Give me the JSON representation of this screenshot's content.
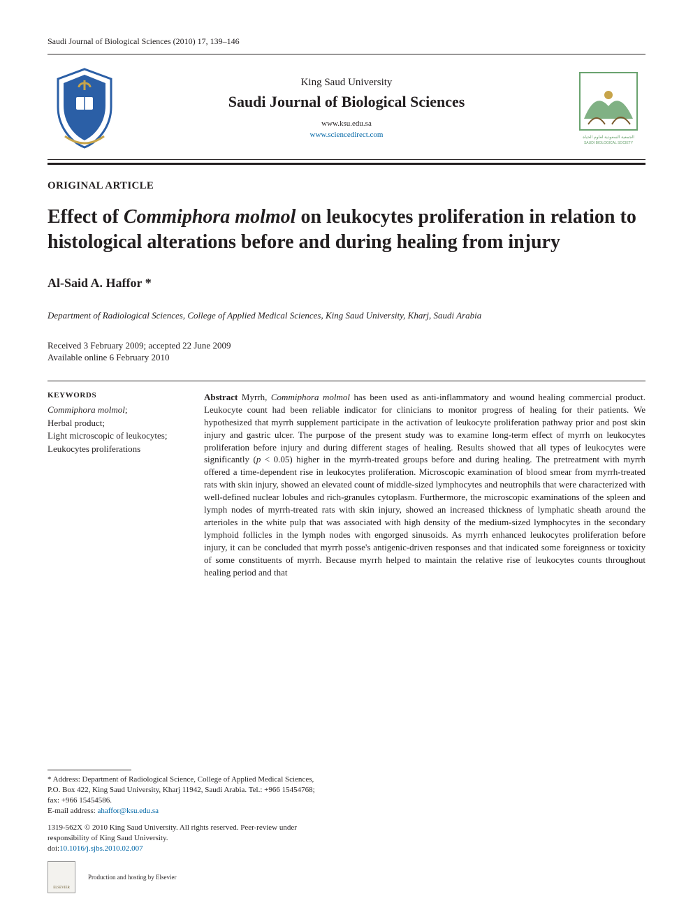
{
  "citation": "Saudi Journal of Biological Sciences (2010) 17, 139–146",
  "header": {
    "publisher": "King Saud University",
    "journal": "Saudi Journal of Biological Sciences",
    "url1": "www.ksu.edu.sa",
    "url2": "www.sciencedirect.com",
    "logo_left_label": "King Saud University crest",
    "logo_right_label": "Saudi Biological Society",
    "logo_right_caption_ar": "الجمعية السعودية لعلوم الحياة",
    "logo_right_caption_en": "SAUDI BIOLOGICAL SOCIETY"
  },
  "article_type": "ORIGINAL ARTICLE",
  "title_pre": "Effect of ",
  "title_em": "Commiphora molmol",
  "title_post": " on leukocytes proliferation in relation to histological alterations before and during healing from injury",
  "author_name": "Al-Said A. Haffor ",
  "author_mark": "*",
  "affiliation": "Department of Radiological Sciences, College of Applied Medical Sciences, King Saud University, Kharj, Saudi Arabia",
  "dates_line1": "Received 3 February 2009; accepted 22 June 2009",
  "dates_line2": "Available online 6 February 2010",
  "keywords_head": "KEYWORDS",
  "keywords_em": "Commiphora molmol",
  "keywords_rest": ";Herbal product;Light microscopic of leukocytes;Leukocytes proliferations",
  "abstract_label": "Abstract",
  "abstract_pre": "   Myrrh, ",
  "abstract_em": "Commiphora molmol",
  "abstract_body": " has been used as anti-inflammatory and wound healing commercial product. Leukocyte count had been reliable indicator for clinicians to monitor progress of healing for their patients. We hypothesized that myrrh supplement participate in the activation of leukocyte proliferation pathway prior and post skin injury and gastric ulcer. The purpose of the present study was to examine long-term effect of myrrh on leukocytes proliferation before injury and during different stages of healing. Results showed that all types of leukocytes were significantly (p < 0.05) higher in the myrrh-treated groups before and during healing. The pretreatment with myrrh offered a time-dependent rise in leukocytes proliferation. Microscopic examination of blood smear from myrrh-treated rats with skin injury, showed an elevated count of middle-sized lymphocytes and neutrophils that were characterized with well-defined nuclear lobules and rich-granules cytoplasm. Furthermore, the microscopic examinations of the spleen and lymph nodes of myrrh-treated rats with skin injury, showed an increased thickness of lymphatic sheath around the arterioles in the white pulp that was associated with high density of the medium-sized lymphocytes in the secondary lymphoid follicles in the lymph nodes with engorged sinusoids. As myrrh enhanced leukocytes proliferation before injury, it can be concluded that myrrh posse's antigenic-driven responses and that indicated some foreignness or toxicity of some constituents of myrrh. Because myrrh helped to maintain the relative rise of leukocytes counts throughout healing period and that",
  "footnotes": {
    "corr_star": "*",
    "corr_text": " Address: Department of Radiological Science, College of Applied Medical Sciences, P.O. Box 422, King Saud University, Kharj 11942, Saudi Arabia. Tel.: +966 15454768; fax: +966 15454586.",
    "email_label": "E-mail address: ",
    "email": "ahaffor@ksu.edu.sa",
    "copyright": "1319-562X © 2010 King Saud University. All rights reserved. Peer-review under responsibility of King Saud University.",
    "doi_pre": "doi:",
    "doi": "10.1016/j.sjbs.2010.02.007",
    "elsevier_logo_text": "ELSEVIER",
    "elsevier_hosting": "Production and hosting by Elsevier"
  },
  "colors": {
    "text": "#231f20",
    "link": "#0066a6",
    "shield_blue": "#2b5fa6",
    "shield_gold": "#c7a44a",
    "society_green": "#6aa36f",
    "society_brown": "#7a5a2c"
  }
}
